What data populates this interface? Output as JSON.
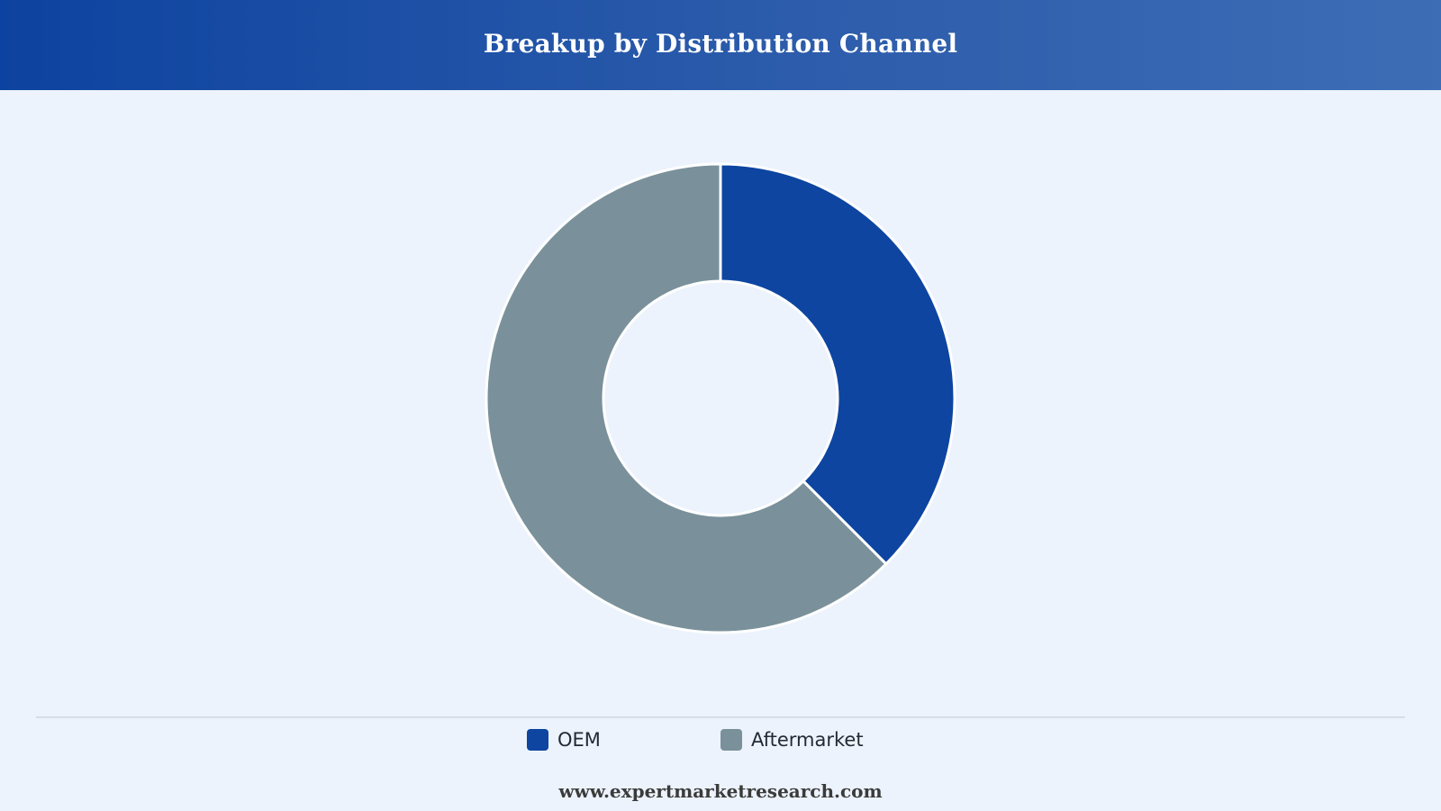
{
  "header": {
    "title": "Breakup by Distribution Channel"
  },
  "chart_data": {
    "type": "pie",
    "variant": "donut",
    "title": "Breakup by Distribution Channel",
    "categories": [
      "OEM",
      "Aftermarket"
    ],
    "values": [
      37.5,
      62.5
    ],
    "unit": "%",
    "colors": [
      "#0d45a1",
      "#7a919b"
    ],
    "legend_position": "bottom",
    "start_angle_deg": 0,
    "direction": "clockwise"
  },
  "legend": {
    "items": [
      {
        "label": "OEM",
        "color": "#0d45a1"
      },
      {
        "label": "Aftermarket",
        "color": "#7a919b"
      }
    ]
  },
  "footer": {
    "text": "www.expertmarketresearch.com"
  }
}
